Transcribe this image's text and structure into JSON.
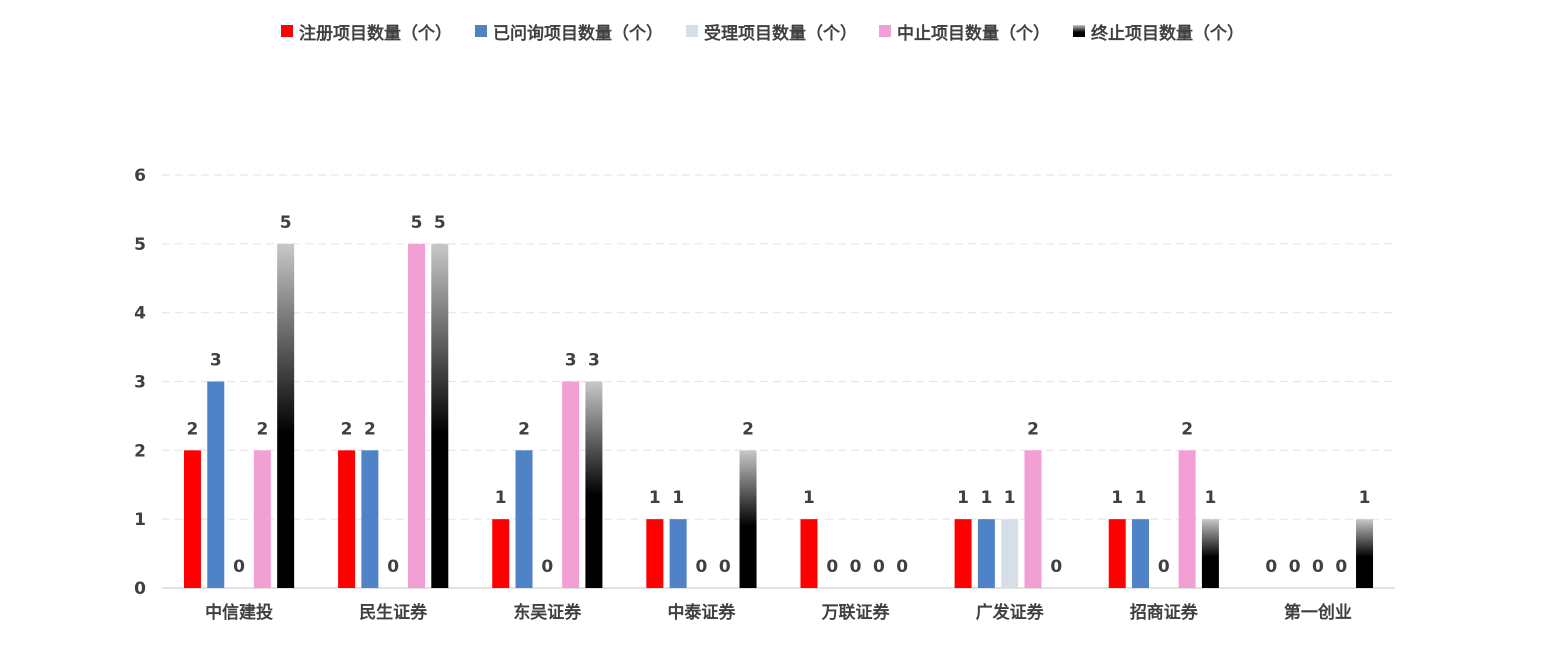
{
  "chart_data": {
    "type": "bar",
    "categories": [
      "中信建投",
      "民生证券",
      "东吴证券",
      "中泰证券",
      "万联证券",
      "广发证券",
      "招商证券",
      "第一创业"
    ],
    "series": [
      {
        "name": "注册项目数量（个）",
        "color": "#ff0000",
        "fill": "solid",
        "values": [
          2,
          2,
          1,
          1,
          1,
          1,
          1,
          0
        ]
      },
      {
        "name": "已问询项目数量（个）",
        "color": "#5082c8",
        "fill": "solid",
        "values": [
          3,
          2,
          2,
          1,
          0,
          1,
          1,
          0
        ]
      },
      {
        "name": "受理项目数量（个）",
        "color": "#d6dfe8",
        "fill": "solid",
        "values": [
          0,
          0,
          0,
          0,
          0,
          1,
          0,
          0
        ]
      },
      {
        "name": "中止项目数量（个）",
        "color": "#f29fd4",
        "fill": "solid",
        "values": [
          2,
          5,
          3,
          0,
          0,
          2,
          2,
          0
        ]
      },
      {
        "name": "终止项目数量（个）",
        "color": "#000000",
        "fill": "gradient-gray-to-black",
        "values": [
          5,
          5,
          3,
          2,
          0,
          0,
          1,
          1
        ]
      }
    ],
    "ylim": [
      0,
      6
    ],
    "yticks": [
      0,
      1,
      2,
      3,
      4,
      5,
      6
    ],
    "grid": true,
    "legend": "top-center",
    "title": "",
    "xlabel": "",
    "ylabel": ""
  }
}
